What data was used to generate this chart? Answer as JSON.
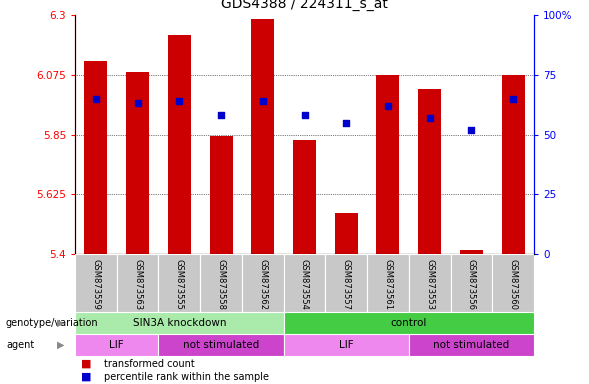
{
  "title": "GDS4388 / 224311_s_at",
  "samples": [
    "GSM873559",
    "GSM873563",
    "GSM873555",
    "GSM873558",
    "GSM873562",
    "GSM873554",
    "GSM873557",
    "GSM873561",
    "GSM873553",
    "GSM873556",
    "GSM873560"
  ],
  "bar_values": [
    6.125,
    6.085,
    6.225,
    5.845,
    6.285,
    5.83,
    5.555,
    6.075,
    6.02,
    5.415,
    6.075
  ],
  "percentile_values": [
    65,
    63,
    64,
    58,
    64,
    58,
    55,
    62,
    57,
    52,
    65
  ],
  "y_min": 5.4,
  "y_max": 6.3,
  "y_ticks": [
    5.4,
    5.625,
    5.85,
    6.075,
    6.3
  ],
  "y_tick_labels": [
    "5.4",
    "5.625",
    "5.85",
    "6.075",
    "6.3"
  ],
  "right_y_ticks": [
    0,
    25,
    50,
    75,
    100
  ],
  "right_y_labels": [
    "0",
    "25",
    "50",
    "75",
    "100%"
  ],
  "bar_color": "#cc0000",
  "percentile_color": "#0000cc",
  "groups": [
    {
      "label": "SIN3A knockdown",
      "start": 0,
      "end": 5,
      "color": "#aaeaaa"
    },
    {
      "label": "control",
      "start": 5,
      "end": 11,
      "color": "#44cc44"
    }
  ],
  "agents": [
    {
      "label": "LIF",
      "start": 0,
      "end": 2,
      "color": "#ee88ee"
    },
    {
      "label": "not stimulated",
      "start": 2,
      "end": 5,
      "color": "#cc44cc"
    },
    {
      "label": "LIF",
      "start": 5,
      "end": 8,
      "color": "#ee88ee"
    },
    {
      "label": "not stimulated",
      "start": 8,
      "end": 11,
      "color": "#cc44cc"
    }
  ],
  "genotype_label": "genotype/variation",
  "agent_label": "agent",
  "legend_red_label": "transformed count",
  "legend_blue_label": "percentile rank within the sample",
  "bg_color": "#ffffff",
  "xlabel_bg": "#c8c8c8"
}
